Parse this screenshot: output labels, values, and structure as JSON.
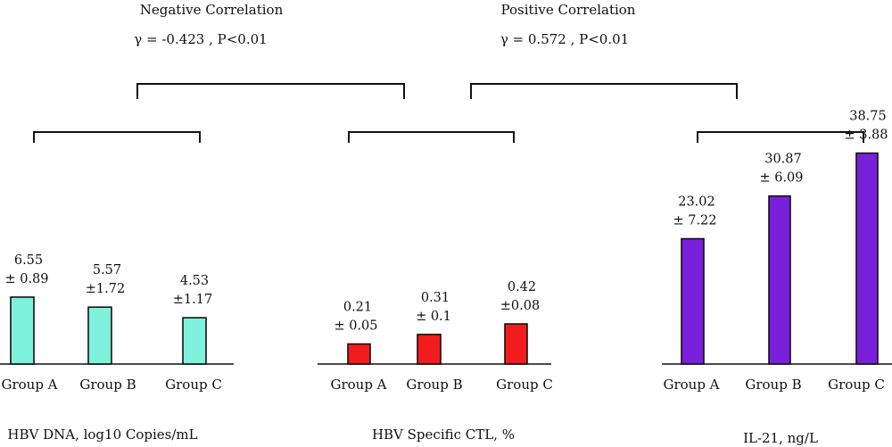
{
  "annotations": {
    "negative": {
      "title": "Negative Correlation",
      "stat": "γ = -0.423 , P<0.01"
    },
    "positive": {
      "title": "Positive Correlation",
      "stat": "γ = 0.572 , P<0.01"
    }
  },
  "chart_data": [
    {
      "type": "bar",
      "title": "",
      "xlabel": "HBV DNA, log10 Copies/mL",
      "ylabel": "",
      "color": "#7ff2dc",
      "categories": [
        "Group A",
        "Group B",
        "Group C"
      ],
      "values": [
        6.55,
        5.57,
        4.53
      ],
      "sd": [
        0.89,
        1.72,
        1.17
      ],
      "value_labels": [
        "6.55",
        "5.57",
        "4.53"
      ],
      "sd_labels": [
        "± 0.89",
        "±1.72",
        "±1.17"
      ]
    },
    {
      "type": "bar",
      "title": "",
      "xlabel": "HBV Specific CTL, %",
      "ylabel": "",
      "color": "#f21c1c",
      "categories": [
        "Group A",
        "Group B",
        "Group C"
      ],
      "values": [
        0.21,
        0.31,
        0.42
      ],
      "sd": [
        0.05,
        0.1,
        0.08
      ],
      "value_labels": [
        "0.21",
        "0.31",
        "0.42"
      ],
      "sd_labels": [
        "± 0.05",
        "± 0.1",
        "±0.08"
      ]
    },
    {
      "type": "bar",
      "title": "",
      "xlabel": "IL-21, ng/L",
      "ylabel": "",
      "color": "#7a1fdc",
      "categories": [
        "Group A",
        "Group B",
        "Group C"
      ],
      "values": [
        23.02,
        30.87,
        38.75
      ],
      "sd": [
        7.22,
        6.09,
        3.88
      ],
      "value_labels": [
        "23.02",
        "30.87",
        "38.75"
      ],
      "sd_labels": [
        "± 7.22",
        "± 6.09",
        "± 3.88"
      ]
    }
  ]
}
